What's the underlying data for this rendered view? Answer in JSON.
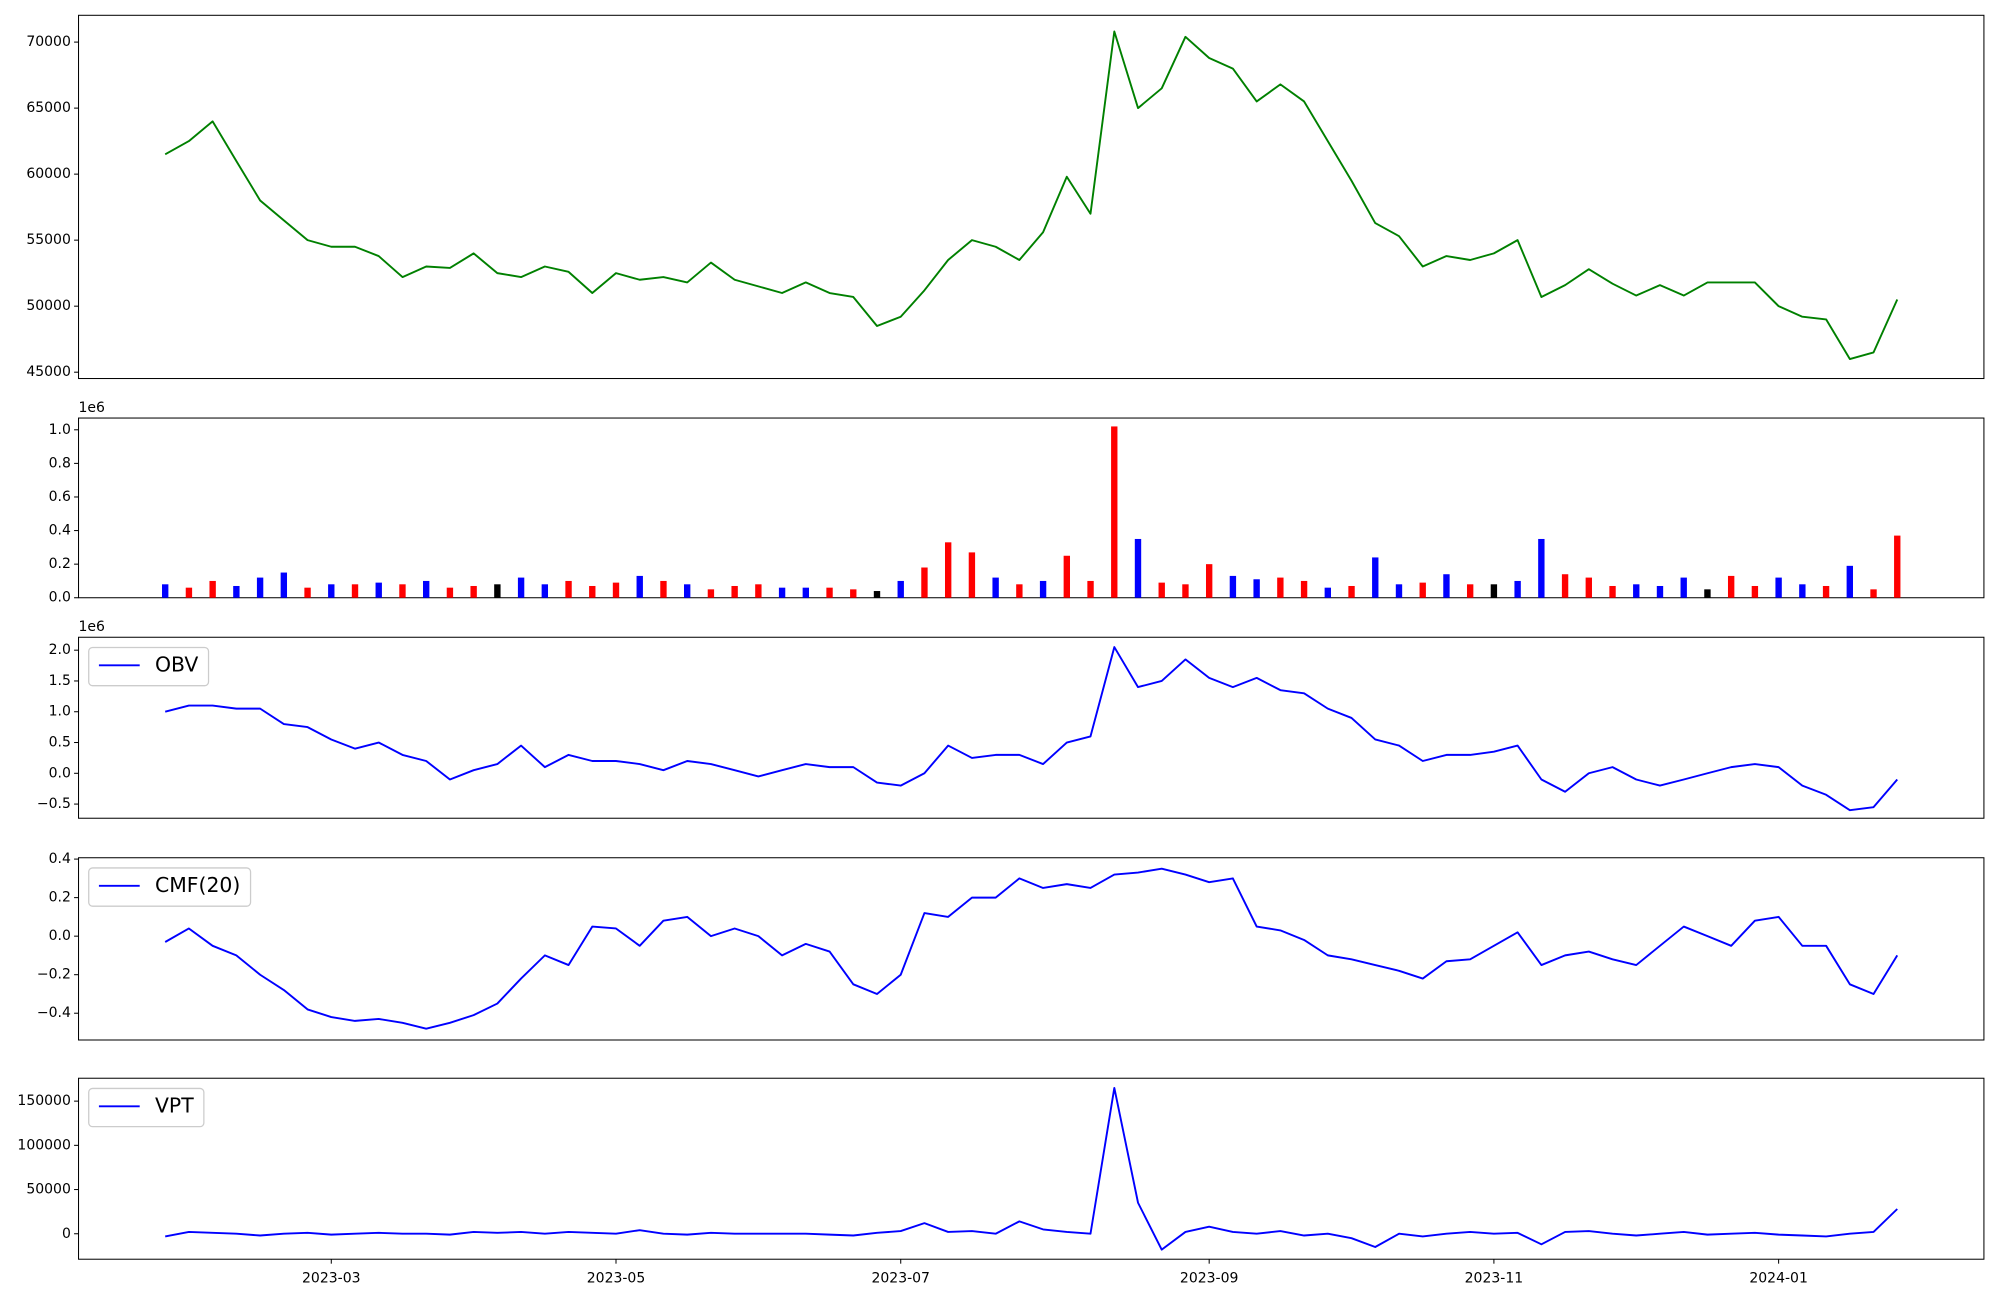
{
  "chart_data": [
    {
      "type": "line",
      "color": "green",
      "values": [
        61500,
        62500,
        64000,
        61000,
        58000,
        56500,
        55000,
        54500,
        54500,
        53800,
        52200,
        53000,
        52900,
        54000,
        52500,
        52200,
        53000,
        52600,
        51000,
        52500,
        52000,
        52200,
        51800,
        53300,
        52000,
        51500,
        51000,
        51800,
        51000,
        50700,
        48500,
        49200,
        51200,
        53500,
        55000,
        54500,
        53500,
        55600,
        59800,
        57000,
        70800,
        65000,
        66500,
        70400,
        68800,
        68000,
        65500,
        66800,
        65500,
        62500,
        59500,
        56300,
        55300,
        53000,
        53800,
        53500,
        54000,
        55000,
        50700,
        51600,
        52800,
        51700,
        50800,
        51600,
        50800,
        51800,
        51800,
        51800,
        50000,
        49200,
        49000,
        46000,
        46500,
        50500
      ],
      "ylim": [
        44520,
        72030
      ],
      "yticks": [
        45000,
        50000,
        55000,
        60000,
        65000,
        70000
      ]
    },
    {
      "type": "bar",
      "offset_label": "1e6",
      "values": [
        0.08,
        0.06,
        0.1,
        0.07,
        0.12,
        0.15,
        0.06,
        0.08,
        0.08,
        0.09,
        0.08,
        0.1,
        0.06,
        0.07,
        0.08,
        0.12,
        0.08,
        0.1,
        0.07,
        0.09,
        0.13,
        0.1,
        0.08,
        0.05,
        0.07,
        0.08,
        0.06,
        0.06,
        0.06,
        0.05,
        0.04,
        0.1,
        0.18,
        0.33,
        0.27,
        0.12,
        0.08,
        0.1,
        0.25,
        0.1,
        1.02,
        0.35,
        0.09,
        0.08,
        0.2,
        0.13,
        0.11,
        0.12,
        0.1,
        0.06,
        0.07,
        0.24,
        0.08,
        0.09,
        0.14,
        0.08,
        0.08,
        0.1,
        0.35,
        0.14,
        0.12,
        0.07,
        0.08,
        0.07,
        0.12,
        0.05,
        0.13,
        0.07,
        0.12,
        0.08,
        0.07,
        0.19,
        0.05,
        0.37
      ],
      "colors": [
        "blue",
        "red",
        "red",
        "blue",
        "blue",
        "blue",
        "red",
        "blue",
        "red",
        "blue",
        "red",
        "blue",
        "red",
        "red",
        "black",
        "blue",
        "blue",
        "red",
        "red",
        "red",
        "blue",
        "red",
        "blue",
        "red",
        "red",
        "red",
        "blue",
        "blue",
        "red",
        "red",
        "black",
        "blue",
        "red",
        "red",
        "red",
        "blue",
        "red",
        "blue",
        "red",
        "red",
        "red",
        "blue",
        "red",
        "red",
        "red",
        "blue",
        "blue",
        "red",
        "red",
        "blue",
        "red",
        "blue",
        "blue",
        "red",
        "blue",
        "red",
        "black",
        "blue",
        "blue",
        "red",
        "red",
        "red",
        "blue",
        "blue",
        "blue",
        "black",
        "red",
        "red",
        "blue",
        "blue",
        "red",
        "blue",
        "red",
        "red"
      ],
      "ylim": [
        0,
        1.07
      ],
      "yticks": [
        {
          "value": 0,
          "label": "0.0"
        },
        {
          "value": 0.2,
          "label": "0.2"
        },
        {
          "value": 0.4,
          "label": "0.4"
        },
        {
          "value": 0.6,
          "label": "0.6"
        },
        {
          "value": 0.8,
          "label": "0.8"
        },
        {
          "value": 1.0,
          "label": "1.0"
        }
      ]
    },
    {
      "type": "line",
      "offset_label": "1e6",
      "legend": "upper left",
      "series": [
        {
          "name": "OBV",
          "color": "blue",
          "values": [
            1.0,
            1.1,
            1.1,
            1.05,
            1.05,
            0.8,
            0.75,
            0.55,
            0.4,
            0.5,
            0.3,
            0.2,
            -0.1,
            0.05,
            0.15,
            0.45,
            0.1,
            0.3,
            0.2,
            0.2,
            0.15,
            0.05,
            0.2,
            0.15,
            0.05,
            -0.05,
            0.05,
            0.15,
            0.1,
            0.1,
            -0.15,
            -0.2,
            0.0,
            0.45,
            0.25,
            0.3,
            0.3,
            0.15,
            0.5,
            0.6,
            2.05,
            1.4,
            1.5,
            1.85,
            1.55,
            1.4,
            1.55,
            1.35,
            1.3,
            1.05,
            0.9,
            0.55,
            0.45,
            0.2,
            0.3,
            0.3,
            0.35,
            0.45,
            -0.1,
            -0.3,
            0.0,
            0.1,
            -0.1,
            -0.2,
            -0.1,
            0.0,
            0.1,
            0.15,
            0.1,
            -0.2,
            -0.35,
            -0.6,
            -0.55,
            -0.1
          ]
        }
      ],
      "ylim": [
        -0.73,
        2.21
      ],
      "yticks": [
        {
          "value": -0.5,
          "label": "−0.5"
        },
        {
          "value": 0,
          "label": "0.0"
        },
        {
          "value": 0.5,
          "label": "0.5"
        },
        {
          "value": 1.0,
          "label": "1.0"
        },
        {
          "value": 1.5,
          "label": "1.5"
        },
        {
          "value": 2.0,
          "label": "2.0"
        }
      ]
    },
    {
      "type": "line",
      "legend": "upper left",
      "series": [
        {
          "name": "CMF(20)",
          "color": "blue",
          "values": [
            -0.03,
            0.04,
            -0.05,
            -0.1,
            -0.2,
            -0.28,
            -0.38,
            -0.42,
            -0.44,
            -0.43,
            -0.45,
            -0.48,
            -0.45,
            -0.41,
            -0.35,
            -0.22,
            -0.1,
            -0.15,
            0.05,
            0.04,
            -0.05,
            0.08,
            0.1,
            0.0,
            0.04,
            0.0,
            -0.1,
            -0.04,
            -0.08,
            -0.25,
            -0.3,
            -0.2,
            0.12,
            0.1,
            0.2,
            0.2,
            0.3,
            0.25,
            0.27,
            0.25,
            0.32,
            0.33,
            0.35,
            0.32,
            0.28,
            0.3,
            0.05,
            0.03,
            -0.02,
            -0.1,
            -0.12,
            -0.15,
            -0.18,
            -0.22,
            -0.13,
            -0.12,
            -0.05,
            0.02,
            -0.15,
            -0.1,
            -0.08,
            -0.12,
            -0.15,
            -0.05,
            0.05,
            0.0,
            -0.05,
            0.08,
            0.1,
            -0.05,
            -0.05,
            -0.25,
            -0.3,
            -0.1
          ]
        }
      ],
      "ylim": [
        -0.539,
        0.407
      ],
      "yticks": [
        {
          "value": -0.4,
          "label": "−0.4"
        },
        {
          "value": -0.2,
          "label": "−0.2"
        },
        {
          "value": 0,
          "label": "0.0"
        },
        {
          "value": 0.2,
          "label": "0.2"
        },
        {
          "value": 0.4,
          "label": "0.4"
        }
      ]
    },
    {
      "type": "line",
      "legend": "upper left",
      "series": [
        {
          "name": "VPT",
          "color": "blue",
          "values": [
            -3000,
            2000,
            1000,
            0,
            -2000,
            0,
            1000,
            -1000,
            0,
            1000,
            0,
            0,
            -1000,
            2000,
            1000,
            2000,
            0,
            2000,
            1000,
            0,
            4000,
            0,
            -1000,
            1000,
            0,
            0,
            0,
            0,
            -1000,
            -2000,
            1000,
            3000,
            12000,
            2000,
            3000,
            0,
            14000,
            5000,
            2000,
            0,
            165000,
            35000,
            -18000,
            2000,
            8000,
            2000,
            0,
            3000,
            -2000,
            0,
            -5000,
            -15000,
            0,
            -3000,
            0,
            2000,
            0,
            1000,
            -12000,
            2000,
            3000,
            0,
            -2000,
            0,
            2000,
            -1000,
            0,
            1000,
            -1000,
            -2000,
            -3000,
            0,
            2000,
            28000
          ]
        }
      ],
      "ylim": [
        -28800,
        175900
      ],
      "yticks": [
        0,
        50000,
        100000,
        150000
      ],
      "categories": [
        null,
        null,
        null,
        null,
        null,
        null,
        null,
        "2023-03",
        null,
        null,
        null,
        null,
        null,
        null,
        null,
        null,
        null,
        null,
        null,
        "2023-05",
        null,
        null,
        null,
        null,
        null,
        null,
        null,
        null,
        null,
        null,
        null,
        "2023-07",
        null,
        null,
        null,
        null,
        null,
        null,
        null,
        null,
        null,
        null,
        null,
        null,
        "2023-09",
        null,
        null,
        null,
        null,
        null,
        null,
        null,
        null,
        null,
        null,
        null,
        "2023-11",
        null,
        null,
        null,
        null,
        null,
        null,
        null,
        null,
        null,
        null,
        null,
        "2024-01",
        null,
        null,
        null,
        null,
        null
      ]
    }
  ]
}
